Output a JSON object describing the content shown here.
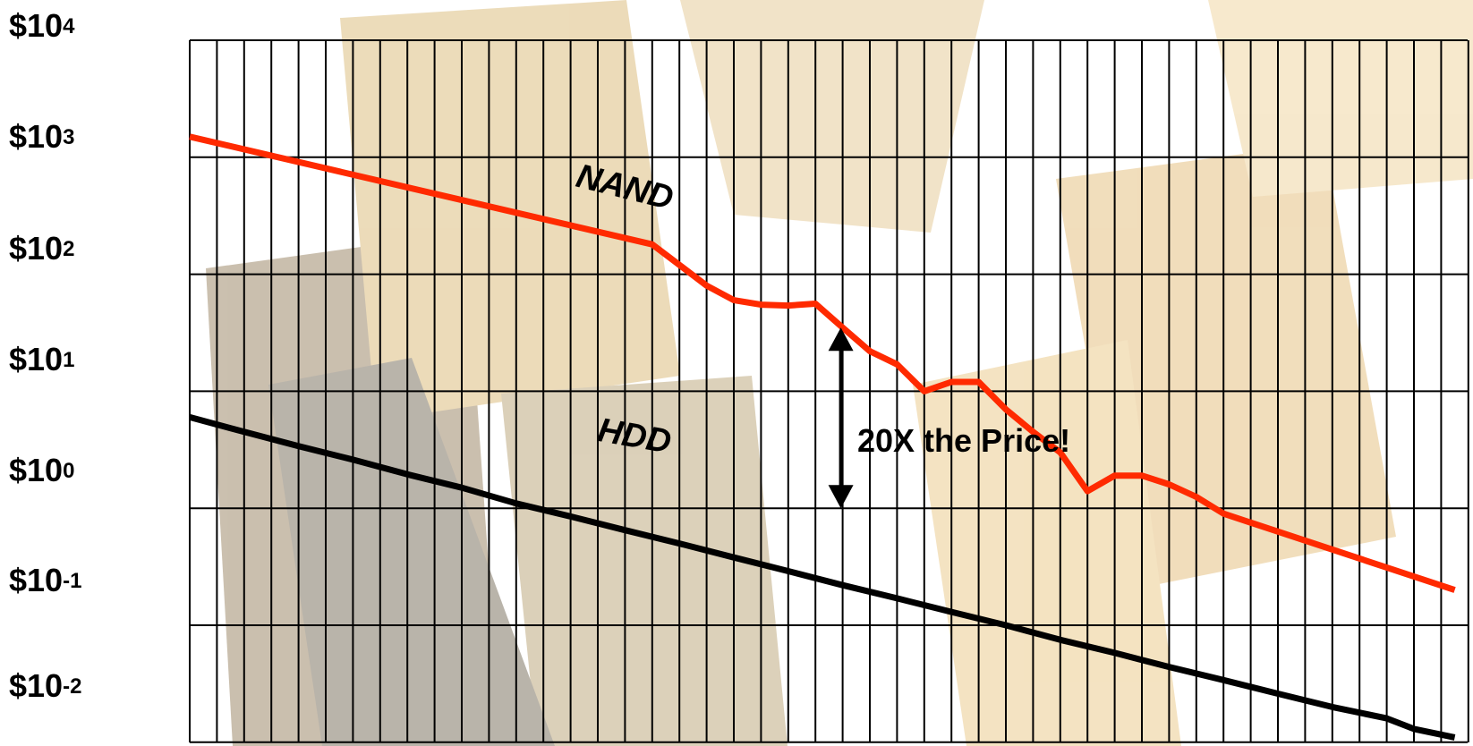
{
  "chart_data": {
    "type": "line",
    "yscale": "log",
    "ylim": [
      0.01,
      10000
    ],
    "y_ticks": [
      {
        "base": "$10",
        "exp": "4",
        "value": 10000
      },
      {
        "base": "$10",
        "exp": "3",
        "value": 1000
      },
      {
        "base": "$10",
        "exp": "2",
        "value": 100
      },
      {
        "base": "$10",
        "exp": "1",
        "value": 10
      },
      {
        "base": "$10",
        "exp": "0",
        "value": 1
      },
      {
        "base": "$10",
        "exp": "-1",
        "value": 0.1
      },
      {
        "base": "$10",
        "exp": "-2",
        "value": 0.01
      }
    ],
    "x_gridlines": 47,
    "grid": true,
    "series": [
      {
        "name": "NAND",
        "color": "#ff2a00",
        "x": [
          0,
          17,
          18,
          19,
          20,
          21,
          22,
          23,
          24,
          25,
          26,
          27,
          28,
          29,
          30,
          31,
          32,
          33,
          34,
          35,
          36,
          37,
          38,
          46.5
        ],
        "y": [
          1500,
          180,
          120,
          80,
          60,
          55,
          54,
          56,
          35,
          22,
          17,
          10,
          12,
          12,
          7,
          4.5,
          3,
          1.4,
          1.9,
          1.9,
          1.6,
          1.25,
          0.9,
          0.2
        ]
      },
      {
        "name": "HDD",
        "color": "#000000",
        "x": [
          0,
          2,
          4,
          6,
          8,
          10,
          12,
          14,
          16,
          18,
          20,
          22,
          24,
          26,
          28,
          30,
          32,
          34,
          36,
          38,
          40,
          42,
          44,
          45,
          46.5
        ],
        "y": [
          6,
          4.5,
          3.4,
          2.6,
          1.95,
          1.5,
          1.1,
          0.85,
          0.65,
          0.5,
          0.38,
          0.29,
          0.22,
          0.17,
          0.13,
          0.1,
          0.075,
          0.058,
          0.044,
          0.034,
          0.026,
          0.02,
          0.016,
          0.013,
          0.011
        ]
      }
    ],
    "annotations": [
      {
        "text": "20X the Price!",
        "x": 24,
        "y_from": 1,
        "y_to": 35
      }
    ]
  }
}
